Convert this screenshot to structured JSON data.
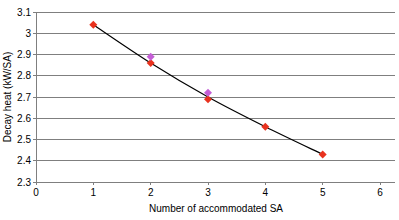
{
  "chart_data": {
    "type": "scatter",
    "x_label": "Number of accommodated SA",
    "y_label": "Decay heat (kW/SA)",
    "xlim": [
      0,
      6
    ],
    "xticks": [
      0,
      1,
      2,
      3,
      4,
      5,
      6
    ],
    "ylim": [
      2.3,
      3.1
    ],
    "yticks": [
      2.3,
      2.4,
      2.5,
      2.6,
      2.7,
      2.8,
      2.9,
      3,
      3.1
    ],
    "grid": true,
    "series": [
      {
        "type": "line",
        "color": "#000000",
        "marker": "none",
        "line_style": "solid",
        "x": [
          1,
          2,
          3,
          4,
          5
        ],
        "values": [
          3.04,
          2.86,
          2.7,
          2.56,
          2.43
        ]
      },
      {
        "type": "scatter",
        "color": "#e8321e",
        "marker": "diamond",
        "x": [
          1,
          2,
          3,
          4,
          5
        ],
        "values": [
          3.04,
          2.86,
          2.69,
          2.56,
          2.43
        ]
      },
      {
        "type": "scatter",
        "color": "#c45ed6",
        "marker": "diamond",
        "x": [
          2,
          3
        ],
        "values": [
          2.89,
          2.72
        ]
      }
    ]
  }
}
